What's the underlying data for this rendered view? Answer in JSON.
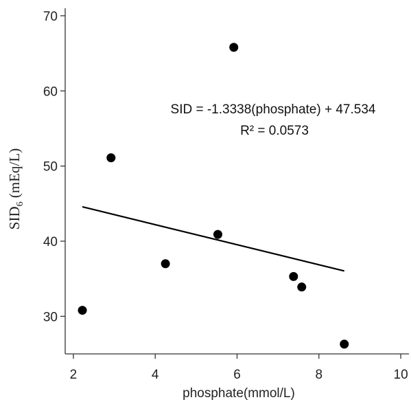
{
  "chart_data": {
    "type": "scatter",
    "xlabel": "phosphate(mmol/L)",
    "ylabel_main": "SID",
    "ylabel_sub": "6",
    "ylabel_unit": " (mEq/L)",
    "xlim": [
      1.8,
      10.2
    ],
    "ylim": [
      25,
      71
    ],
    "xticks": [
      2,
      4,
      6,
      8,
      10
    ],
    "yticks": [
      30,
      40,
      50,
      60,
      70
    ],
    "grid": false,
    "colors": {
      "points": "#000000",
      "line": "#000000",
      "axis": "#333333"
    },
    "points": [
      {
        "x": 2.22,
        "y": 30.8
      },
      {
        "x": 2.92,
        "y": 51.1
      },
      {
        "x": 4.25,
        "y": 37.0
      },
      {
        "x": 5.53,
        "y": 40.9
      },
      {
        "x": 5.92,
        "y": 65.8
      },
      {
        "x": 7.38,
        "y": 35.3
      },
      {
        "x": 7.58,
        "y": 33.9
      },
      {
        "x": 8.62,
        "y": 26.3
      }
    ],
    "fit_line": {
      "slope": -1.3338,
      "intercept": 47.534,
      "x_range": [
        2.22,
        8.62
      ]
    },
    "annotations": {
      "equation": "SID = -1.3338(phosphate) + 47.534",
      "r_squared": "R² = 0.0573"
    }
  }
}
